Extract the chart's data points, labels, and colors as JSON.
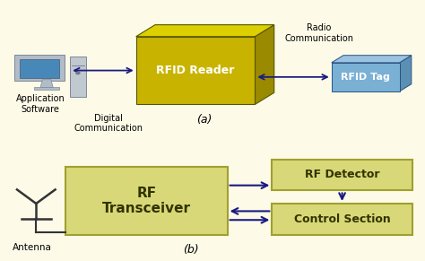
{
  "bg_color": "#fdfbe8",
  "rfid_reader_front_color": "#c8b400",
  "rfid_reader_top_color": "#ddd000",
  "rfid_reader_right_color": "#9a8a00",
  "rfid_reader_label": "RFID Reader",
  "rfid_tag_front_color": "#7ab0d4",
  "rfid_tag_top_color": "#9ac4e0",
  "rfid_tag_right_color": "#5a90b4",
  "rfid_tag_label": "RFID Tag",
  "radio_comm_label": "Radio\nCommunication",
  "digital_comm_label": "Digital\nCommunication",
  "app_soft_label": "Application\nSoftware",
  "label_a": "(a)",
  "label_b": "(b)",
  "rf_transceiver_color": "#d8d878",
  "rf_transceiver_edge": "#a0a030",
  "rf_transceiver_label": "RF\nTransceiver",
  "rf_detector_color": "#d8d878",
  "rf_detector_edge": "#a0a030",
  "rf_detector_label": "RF Detector",
  "control_section_color": "#d8d878",
  "control_section_edge": "#a0a030",
  "control_section_label": "Control Section",
  "antenna_label": "Antenna",
  "arrow_color": "#1a1a80",
  "text_color": "#000000",
  "line_color": "#333333"
}
